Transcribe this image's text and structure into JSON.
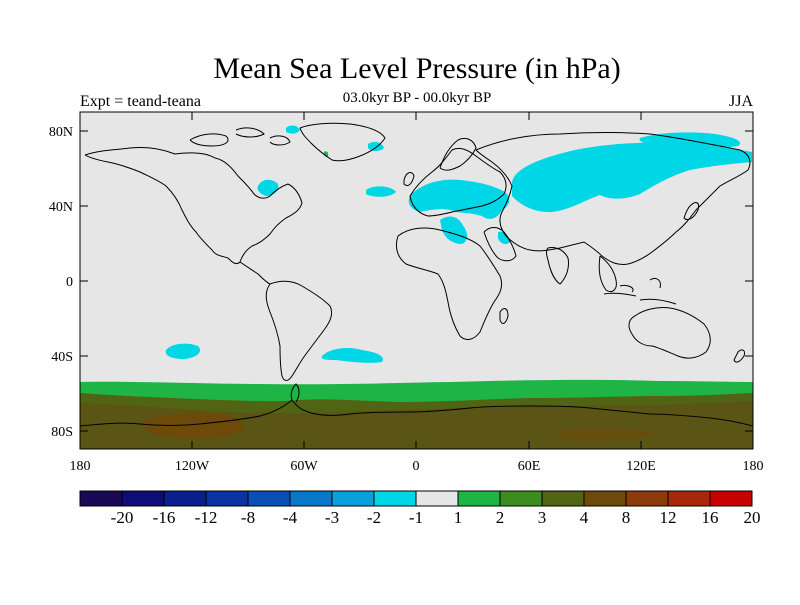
{
  "header": {
    "title": "Mean Sea Level Pressure (in hPa)",
    "subtitle": "03.0kyr BP - 00.0kyr BP",
    "left_label": "Expt = teand-teana",
    "season": "JJA"
  },
  "axes": {
    "x_ticks": [
      "180",
      "120W",
      "60W",
      "0",
      "60E",
      "120E",
      "180"
    ],
    "y_ticks": [
      "80N",
      "40N",
      "0",
      "40S",
      "80S"
    ]
  },
  "colorbar": {
    "colors": [
      "#1a0a55",
      "#0d0d75",
      "#0a1e8c",
      "#0a32a0",
      "#0a50b4",
      "#0a78c8",
      "#0aa0dc",
      "#00d7e6",
      "#e6e6e6",
      "#1eb446",
      "#3c8c1e",
      "#506414",
      "#6e4a0a",
      "#8c3c0a",
      "#aa280a",
      "#c80000"
    ],
    "labels": [
      "-20",
      "-16",
      "-12",
      "-8",
      "-4",
      "-3",
      "-2",
      "-1",
      "1",
      "2",
      "3",
      "4",
      "8",
      "12",
      "16",
      "20"
    ]
  },
  "chart_data": {
    "type": "heatmap",
    "title": "Mean Sea Level Pressure (in hPa)",
    "subtitle": "03.0kyr BP - 00.0kyr BP",
    "season": "JJA",
    "experiment": "teand-teana",
    "xlim": [
      -180,
      180
    ],
    "ylim": [
      -90,
      90
    ],
    "levels": [
      -20,
      -16,
      -12,
      -8,
      -4,
      -3,
      -2,
      -1,
      1,
      2,
      3,
      4,
      8,
      12,
      16,
      20
    ],
    "background_color": "#e6e6e6",
    "regions": [
      {
        "name": "southern-ocean-band",
        "value_range": [
          1,
          2
        ],
        "lat_range": [
          -90,
          -55
        ]
      },
      {
        "name": "antarctic-interior",
        "value_range": [
          2,
          4
        ],
        "lat_range": [
          -90,
          -62
        ]
      },
      {
        "name": "ross-sea-maximum",
        "value_range": [
          4,
          8
        ],
        "lat_range": [
          -86,
          -75
        ]
      },
      {
        "name": "eurasia-anomaly",
        "value_range": [
          -2,
          -1
        ],
        "lat_range": [
          35,
          80
        ]
      },
      {
        "name": "mediterranean-anomaly",
        "value_range": [
          -2,
          -1
        ],
        "lat_range": [
          28,
          50
        ]
      },
      {
        "name": "greenland-anomaly",
        "value_range": [
          -2,
          -1
        ],
        "lat_range": [
          70,
          80
        ]
      },
      {
        "name": "south-pacific-anomaly",
        "value_range": [
          -2,
          -1
        ],
        "lat_range": [
          -40,
          -43
        ]
      },
      {
        "name": "south-atlantic-anomaly",
        "value_range": [
          -2,
          -1
        ],
        "lat_range": [
          -39,
          -44
        ]
      }
    ]
  }
}
